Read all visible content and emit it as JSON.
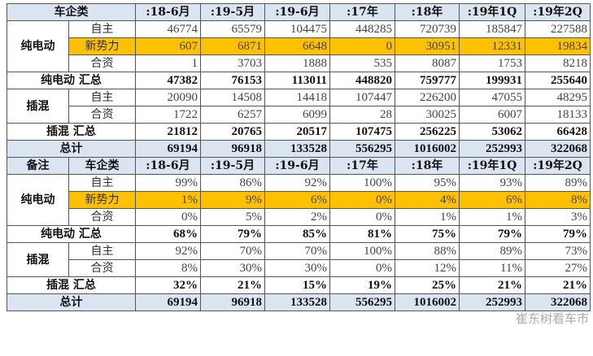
{
  "columns": [
    ":18-6月",
    ":19-5月",
    ":19-6月",
    ":17年",
    ":18年",
    ":19年1Q",
    ":19年2Q"
  ],
  "top": {
    "header_label": "车企类",
    "bev": {
      "label": "纯电动",
      "rows": [
        {
          "label": "自主",
          "values": [
            "46774",
            "65579",
            "104475",
            "448285",
            "720739",
            "185847",
            "227588"
          ]
        },
        {
          "label": "新势力",
          "values": [
            "607",
            "6871",
            "6648",
            "0",
            "30951",
            "12331",
            "19834"
          ]
        },
        {
          "label": "合资",
          "values": [
            "1",
            "3703",
            "1888",
            "535",
            "8087",
            "1753",
            "8218"
          ]
        }
      ]
    },
    "bev_total": {
      "label": "纯电动 汇总",
      "values": [
        "47382",
        "76153",
        "113011",
        "448820",
        "759777",
        "199931",
        "255640"
      ]
    },
    "phev": {
      "label": "插混",
      "rows": [
        {
          "label": "自主",
          "values": [
            "20090",
            "14508",
            "14418",
            "107447",
            "226200",
            "47055",
            "48295"
          ]
        },
        {
          "label": "合资",
          "values": [
            "1722",
            "6257",
            "6099",
            "28",
            "30025",
            "6007",
            "18133"
          ]
        }
      ]
    },
    "phev_total": {
      "label": "插混 汇总",
      "values": [
        "21812",
        "20765",
        "20517",
        "107475",
        "256225",
        "53062",
        "66428"
      ]
    },
    "total": {
      "label": "总计",
      "values": [
        "69194",
        "96918",
        "133528",
        "556295",
        "1016002",
        "252993",
        "322068"
      ]
    }
  },
  "bottom": {
    "note_label": "备注",
    "header_label": "车企类",
    "bev": {
      "label": "纯电动",
      "rows": [
        {
          "label": "自主",
          "values": [
            "99%",
            "86%",
            "92%",
            "100%",
            "95%",
            "93%",
            "89%"
          ]
        },
        {
          "label": "新势力",
          "values": [
            "1%",
            "9%",
            "6%",
            "0%",
            "4%",
            "6%",
            "8%"
          ]
        },
        {
          "label": "合资",
          "values": [
            "0%",
            "5%",
            "2%",
            "0%",
            "1%",
            "1%",
            "3%"
          ]
        }
      ]
    },
    "bev_total": {
      "label": "纯电动 汇总",
      "values": [
        "68%",
        "79%",
        "85%",
        "81%",
        "75%",
        "79%",
        "79%"
      ]
    },
    "phev": {
      "label": "插混",
      "rows": [
        {
          "label": "自主",
          "values": [
            "92%",
            "70%",
            "70%",
            "100%",
            "88%",
            "89%",
            "73%"
          ]
        },
        {
          "label": "合资",
          "values": [
            "8%",
            "30%",
            "30%",
            "0%",
            "12%",
            "11%",
            "27%"
          ]
        }
      ]
    },
    "phev_total": {
      "label": "插混 汇总",
      "values": [
        "32%",
        "21%",
        "15%",
        "19%",
        "25%",
        "21%",
        "21%"
      ]
    },
    "total": {
      "label": "总计",
      "values": [
        "69194",
        "96918",
        "133528",
        "556295",
        "1016002",
        "252993",
        "322068"
      ]
    }
  },
  "watermark": "崔东树看车市",
  "colors": {
    "header": "#dbe5f1",
    "highlight": "#ffc000"
  }
}
